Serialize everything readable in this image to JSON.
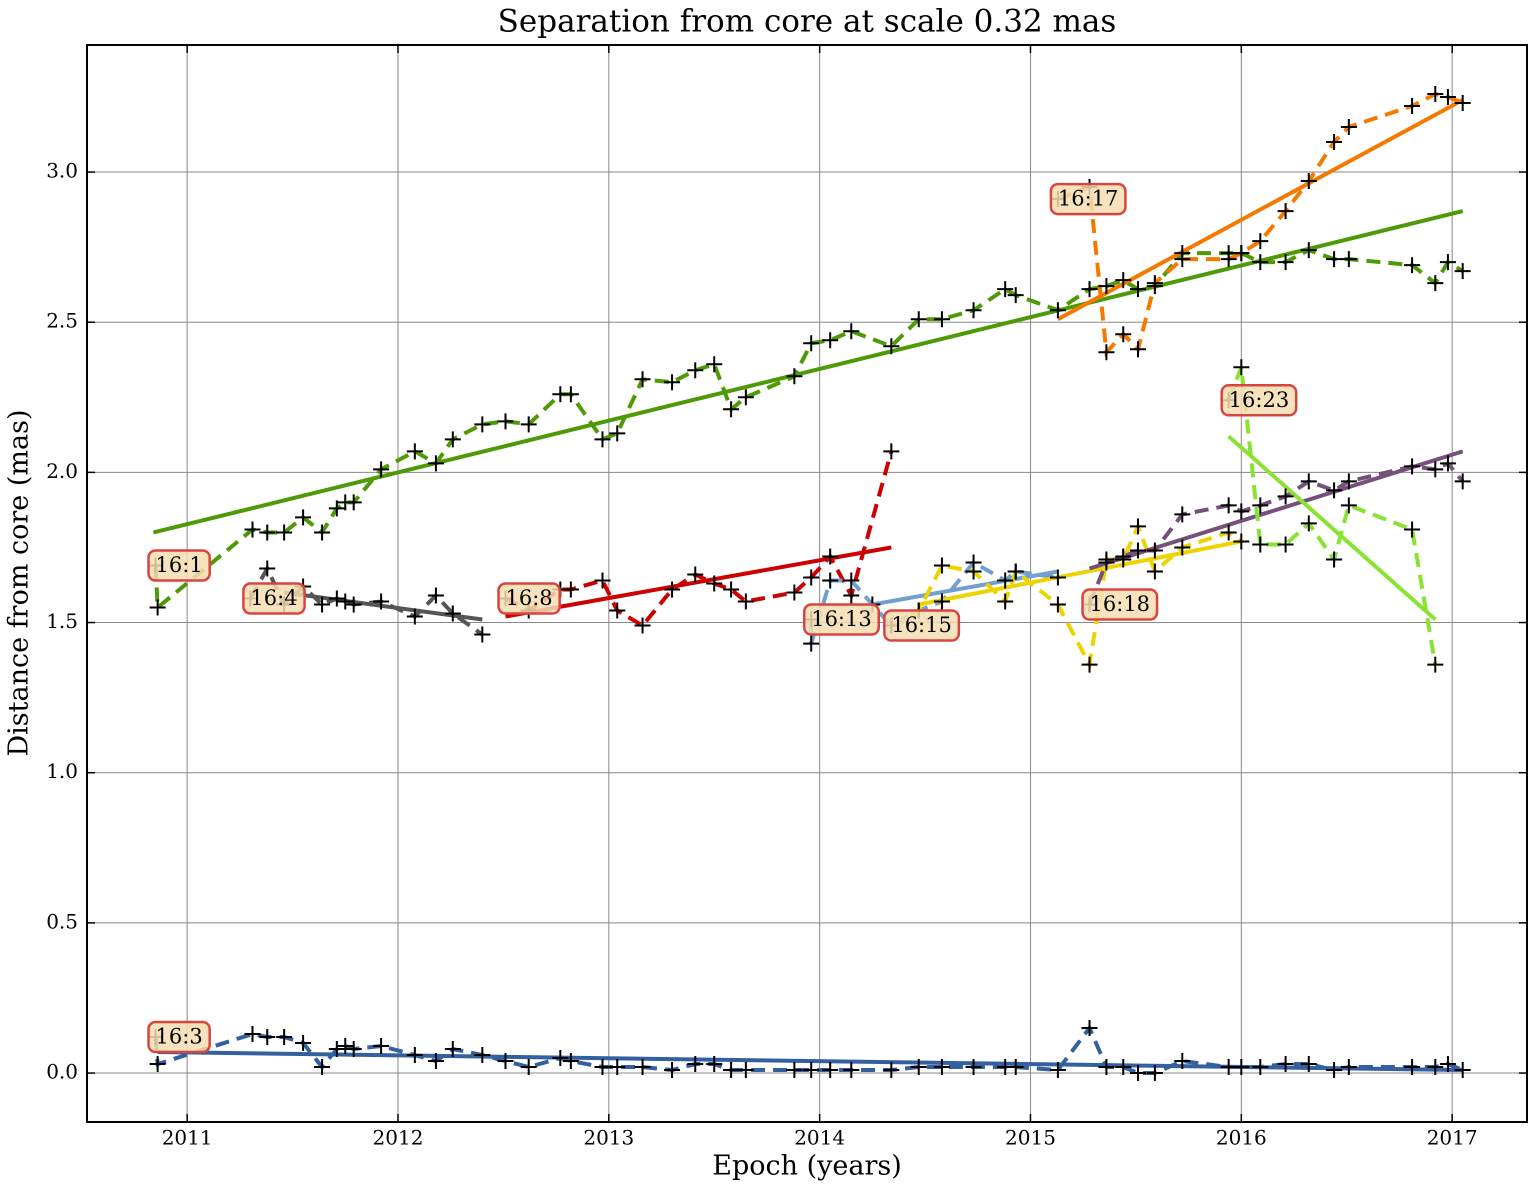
{
  "chart_data": {
    "type": "line",
    "title": "Separation from core at scale 0.32 mas",
    "x_label": "Epoch (years)",
    "y_label": "Distance from core (mas)",
    "xlim": [
      2010.525,
      2017.355
    ],
    "ylim": [
      -0.163,
      3.423
    ],
    "xticks": [
      2011,
      2012,
      2013,
      2014,
      2015,
      2016,
      2017
    ],
    "yticks": [
      {
        "value": 0,
        "label": "0.0"
      },
      0.5,
      {
        "value": 1,
        "label": "1.0"
      },
      1.5,
      {
        "value": 2,
        "label": "2.0"
      },
      2.5,
      {
        "value": 3,
        "label": "3.0"
      }
    ],
    "grid": true,
    "series": [
      {
        "name": "16:3",
        "color": "#34609f",
        "x": [
          2010.85,
          2010.86,
          2011.31,
          2011.38,
          2011.46,
          2011.55,
          2011.64,
          2011.71,
          2011.75,
          2011.79,
          2011.92,
          2012.08,
          2012.18,
          2012.26,
          2012.4,
          2012.51,
          2012.62,
          2012.77,
          2012.82,
          2012.97,
          2013.04,
          2013.16,
          2013.3,
          2013.41,
          2013.5,
          2013.58,
          2013.65,
          2013.88,
          2013.96,
          2014.05,
          2014.15,
          2014.34,
          2014.47,
          2014.58,
          2014.73,
          2014.88,
          2014.93,
          2015.13,
          2015.28,
          2015.36,
          2015.44,
          2015.51,
          2015.59,
          2015.72,
          2015.94,
          2016.0,
          2016.09,
          2016.21,
          2016.32,
          2016.44,
          2016.51,
          2016.81,
          2016.92,
          2016.98,
          2017.05
        ],
        "values": [
          0.12,
          0.03,
          0.13,
          0.12,
          0.12,
          0.1,
          0.02,
          0.08,
          0.09,
          0.08,
          0.09,
          0.06,
          0.04,
          0.08,
          0.06,
          0.04,
          0.02,
          0.05,
          0.04,
          0.02,
          0.02,
          0.02,
          0.01,
          0.03,
          0.03,
          0.01,
          0.01,
          0.01,
          0.01,
          0.01,
          0.01,
          0.01,
          0.02,
          0.02,
          0.02,
          0.02,
          0.02,
          0.01,
          0.15,
          0.02,
          0.02,
          0.0,
          0.0,
          0.04,
          0.02,
          0.02,
          0.02,
          0.03,
          0.03,
          0.01,
          0.02,
          0.02,
          0.02,
          0.03,
          0.01
        ],
        "fit": {
          "x": [
            2010.86,
            2017.05
          ],
          "values": [
            0.07,
            0.01
          ]
        }
      },
      {
        "name": "16:1",
        "color": "#4e9a06",
        "x": [
          2010.85,
          2010.86,
          2011.31,
          2011.38,
          2011.46,
          2011.55,
          2011.64,
          2011.71,
          2011.75,
          2011.79,
          2011.92,
          2012.08,
          2012.18,
          2012.26,
          2012.4,
          2012.51,
          2012.62,
          2012.77,
          2012.82,
          2012.97,
          2013.04,
          2013.16,
          2013.3,
          2013.41,
          2013.5,
          2013.58,
          2013.65,
          2013.88,
          2013.96,
          2014.05,
          2014.15,
          2014.34,
          2014.47,
          2014.58,
          2014.73,
          2014.88,
          2014.93,
          2015.13,
          2015.28,
          2015.36,
          2015.44,
          2015.51,
          2015.59,
          2015.72,
          2015.94,
          2016.0,
          2016.09,
          2016.21,
          2016.32,
          2016.44,
          2016.51,
          2016.81,
          2016.92,
          2016.98,
          2017.05
        ],
        "values": [
          1.69,
          1.55,
          1.81,
          1.8,
          1.8,
          1.85,
          1.8,
          1.88,
          1.9,
          1.9,
          2.01,
          2.07,
          2.03,
          2.11,
          2.16,
          2.17,
          2.16,
          2.26,
          2.26,
          2.11,
          2.13,
          2.31,
          2.3,
          2.34,
          2.36,
          2.21,
          2.25,
          2.32,
          2.43,
          2.44,
          2.47,
          2.42,
          2.51,
          2.51,
          2.54,
          2.61,
          2.59,
          2.54,
          2.61,
          2.62,
          2.64,
          2.61,
          2.62,
          2.73,
          2.73,
          2.73,
          2.7,
          2.7,
          2.74,
          2.71,
          2.71,
          2.69,
          2.63,
          2.7,
          2.67
        ],
        "fit": {
          "x": [
            2010.84,
            2017.05
          ],
          "values": [
            1.8,
            2.87
          ]
        }
      },
      {
        "name": "16:4",
        "color": "#555555",
        "x": [
          2011.3,
          2011.38,
          2011.46,
          2011.55,
          2011.64,
          2011.71,
          2011.75,
          2011.79,
          2011.92,
          2012.08,
          2012.18,
          2012.26,
          2012.4
        ],
        "values": [
          1.58,
          1.68,
          1.56,
          1.62,
          1.56,
          1.58,
          1.57,
          1.56,
          1.57,
          1.52,
          1.59,
          1.53,
          1.46
        ],
        "fit": {
          "x": [
            2011.46,
            2012.4
          ],
          "values": [
            1.6,
            1.51
          ]
        }
      },
      {
        "name": "16:8",
        "color": "#cc0000",
        "x": [
          2012.51,
          2012.62,
          2012.77,
          2012.82,
          2012.97,
          2013.04,
          2013.16,
          2013.3,
          2013.41,
          2013.5,
          2013.58,
          2013.65,
          2013.88,
          2013.96,
          2014.05,
          2014.15,
          2014.34
        ],
        "values": [
          1.58,
          1.54,
          1.61,
          1.61,
          1.64,
          1.54,
          1.49,
          1.61,
          1.66,
          1.63,
          1.61,
          1.57,
          1.6,
          1.65,
          1.72,
          1.59,
          2.07
        ],
        "fit": {
          "x": [
            2012.51,
            2014.34
          ],
          "values": [
            1.52,
            1.75
          ]
        }
      },
      {
        "name": "16:13",
        "color": "#729fcf",
        "x": [
          2013.96,
          2013.96,
          2014.05,
          2014.15,
          2014.25,
          2014.34,
          2014.47,
          2014.58,
          2014.73,
          2014.88,
          2014.93,
          2015.13
        ],
        "values": [
          1.51,
          1.43,
          1.64,
          1.64,
          1.56,
          1.49,
          1.54,
          1.57,
          1.7,
          1.64,
          1.67,
          1.65
        ],
        "fit": {
          "x": [
            2014.25,
            2015.13
          ],
          "values": [
            1.56,
            1.67
          ]
        }
      },
      {
        "name": "16:15",
        "color": "#edd400",
        "x": [
          2014.34,
          2014.47,
          2014.58,
          2014.73,
          2014.88,
          2014.93,
          2015.13,
          2015.28,
          2015.36,
          2015.44,
          2015.51,
          2015.59,
          2015.72,
          2015.94,
          2016.0
        ],
        "values": [
          1.49,
          1.54,
          1.69,
          1.67,
          1.57,
          1.67,
          1.56,
          1.36,
          1.71,
          1.71,
          1.82,
          1.67,
          1.75,
          1.8,
          1.77
        ],
        "fit": {
          "x": [
            2014.47,
            2016.0
          ],
          "values": [
            1.56,
            1.77
          ]
        }
      },
      {
        "name": "16:18",
        "color": "#75507b",
        "x": [
          2015.28,
          2015.36,
          2015.44,
          2015.51,
          2015.59,
          2015.72,
          2015.94,
          2016.0,
          2016.09,
          2016.21,
          2016.32,
          2016.44,
          2016.51,
          2016.81,
          2016.92,
          2016.98,
          2017.05
        ],
        "values": [
          1.56,
          1.7,
          1.72,
          1.74,
          1.74,
          1.86,
          1.89,
          1.87,
          1.89,
          1.92,
          1.97,
          1.94,
          1.97,
          2.02,
          2.01,
          2.03,
          1.97
        ],
        "fit": {
          "x": [
            2015.28,
            2017.05
          ],
          "values": [
            1.68,
            2.07
          ]
        }
      },
      {
        "name": "16:17",
        "color": "#f57900",
        "x": [
          2015.13,
          2015.28,
          2015.36,
          2015.44,
          2015.51,
          2015.59,
          2015.72,
          2015.94,
          2016.0,
          2016.09,
          2016.21,
          2016.32,
          2016.44,
          2016.51,
          2016.81,
          2016.92,
          2016.98,
          2017.05
        ],
        "values": [
          2.91,
          2.95,
          2.4,
          2.46,
          2.41,
          2.63,
          2.71,
          2.71,
          2.73,
          2.77,
          2.87,
          2.97,
          3.1,
          3.15,
          3.22,
          3.26,
          3.25,
          3.23
        ],
        "fit": {
          "x": [
            2015.13,
            2017.05
          ],
          "values": [
            2.51,
            3.24
          ]
        }
      },
      {
        "name": "16:23",
        "color": "#8ae234",
        "x": [
          2015.94,
          2016.0,
          2016.09,
          2016.21,
          2016.32,
          2016.44,
          2016.51,
          2016.81,
          2016.92
        ],
        "values": [
          2.24,
          2.35,
          1.76,
          1.76,
          1.83,
          1.71,
          1.89,
          1.81,
          1.36
        ],
        "fit": {
          "x": [
            2015.94,
            2016.92
          ],
          "values": [
            2.12,
            1.51
          ]
        }
      }
    ]
  }
}
